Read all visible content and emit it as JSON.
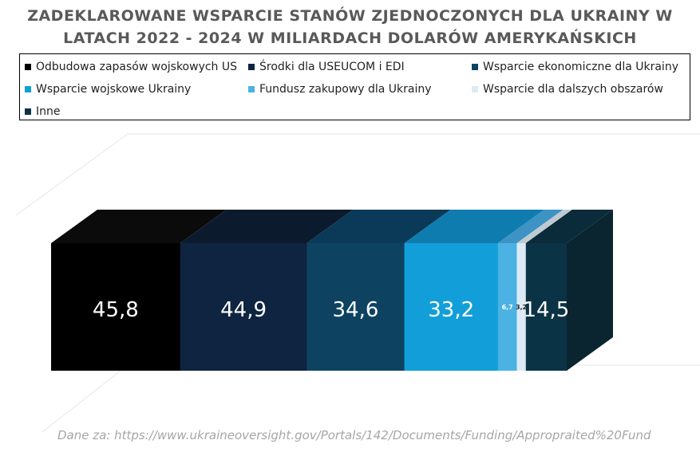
{
  "chart_data": {
    "type": "bar",
    "orientation": "horizontal-stacked-3d",
    "title_lines": [
      "ZADEKLAROWANE WSPARCIE STANÓW ZJEDNOCZONYCH DLA UKRAINY W",
      "LATACH 2022 - 2024 W MILIARDACH DOLARÓW AMERYKAŃSKICH"
    ],
    "unit": "mld USD",
    "legend_position": "top",
    "series": [
      {
        "name": "Odbudowa zapasów wojskowych US",
        "value": 45.8,
        "label": "45,8",
        "color": "#000000",
        "side_color": "#000000",
        "top_color": "#0b0b0b"
      },
      {
        "name": "Środki dla USEUCOM i EDI",
        "value": 44.9,
        "label": "44,9",
        "color": "#0f2440",
        "side_color": "#0c1d33",
        "top_color": "#0c1a2d"
      },
      {
        "name": "Wsparcie ekonomiczne dla Ukrainy",
        "value": 34.6,
        "label": "34,6",
        "color": "#0d4361",
        "side_color": "#0b384f",
        "top_color": "#0a3a58"
      },
      {
        "name": "Wsparcie wojskowe Ukrainy",
        "value": 33.2,
        "label": "33,2",
        "color": "#129fd9",
        "side_color": "#0e84b4",
        "top_color": "#0f7cb0"
      },
      {
        "name": "Fundusz zakupowy dla Ukrainy",
        "value": 6.7,
        "label": "6,7",
        "color": "#4bb2e3",
        "side_color": "#3c96c0",
        "top_color": "#3d93c3"
      },
      {
        "name": "Wsparcie dla dalszych obszarów",
        "value": 3.2,
        "label": "3,2",
        "color": "#ddeaf5",
        "side_color": "#b9c9d6",
        "top_color": "#c0cad2"
      },
      {
        "name": "Inne",
        "value": 14.5,
        "label": "14,5",
        "color": "#0b3346",
        "side_color": "#092a39",
        "top_color": "#0a2b3a"
      }
    ]
  },
  "legend": {
    "items": [
      {
        "label": "Odbudowa zapasów wojskowych US",
        "color": "#000000"
      },
      {
        "label": "Środki dla USEUCOM i EDI",
        "color": "#0f2440"
      },
      {
        "label": "Wsparcie ekonomiczne dla Ukrainy",
        "color": "#0d4361"
      },
      {
        "label": "Wsparcie wojskowe Ukrainy",
        "color": "#129fd9"
      },
      {
        "label": "Fundusz zakupowy dla Ukrainy",
        "color": "#4bb2e3"
      },
      {
        "label": "Wsparcie dla dalszych obszarów",
        "color": "#ddeaf5"
      },
      {
        "label": "Inne",
        "color": "#0b3346"
      }
    ]
  },
  "source": "Dane za: https://www.ukraineoversight.gov/Portals/142/Documents/Funding/Appropraited%20Fund"
}
